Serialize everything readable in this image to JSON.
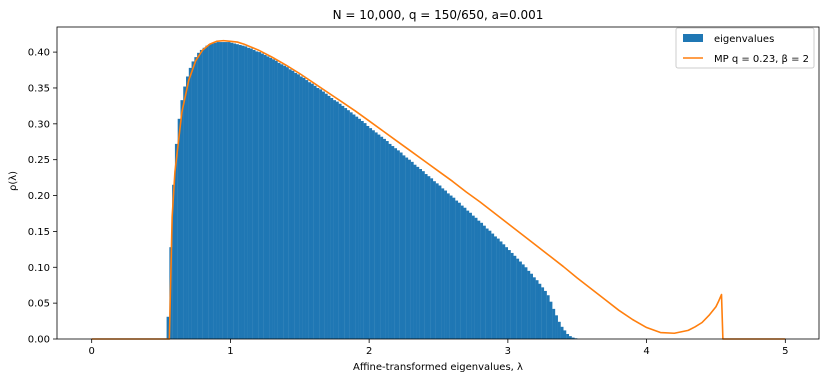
{
  "chart_data": {
    "type": "bar",
    "title": "N = 10,000, q = 150/650, a=0.001",
    "xlabel": "Affine-transformed eigenvalues, λ",
    "ylabel": "ρ(λ)",
    "xlim": [
      -0.25,
      5.25
    ],
    "ylim": [
      0,
      0.435
    ],
    "xticks": [
      0,
      1,
      2,
      3,
      4,
      5
    ],
    "xtick_labels": [
      "0",
      "1",
      "2",
      "3",
      "4",
      "5"
    ],
    "yticks": [
      0.0,
      0.05,
      0.1,
      0.15,
      0.2,
      0.25,
      0.3,
      0.35,
      0.4
    ],
    "ytick_labels": [
      "0.00",
      "0.05",
      "0.10",
      "0.15",
      "0.20",
      "0.25",
      "0.30",
      "0.35",
      "0.40"
    ],
    "legend_position": "top-right",
    "colors": {
      "histogram": "#1f77b4",
      "curve": "#ff7f0e"
    },
    "histogram": {
      "name": "eigenvalues",
      "bin_width": 0.02,
      "bin_edges_start": 0.54,
      "values": [
        0.031,
        0.128,
        0.215,
        0.272,
        0.307,
        0.333,
        0.352,
        0.366,
        0.378,
        0.387,
        0.393,
        0.399,
        0.403,
        0.406,
        0.409,
        0.411,
        0.412,
        0.413,
        0.414,
        0.414,
        0.414,
        0.414,
        0.414,
        0.413,
        0.412,
        0.411,
        0.41,
        0.409,
        0.408,
        0.406,
        0.405,
        0.403,
        0.401,
        0.4,
        0.398,
        0.396,
        0.394,
        0.392,
        0.39,
        0.388,
        0.385,
        0.383,
        0.381,
        0.379,
        0.376,
        0.374,
        0.371,
        0.369,
        0.366,
        0.364,
        0.361,
        0.358,
        0.356,
        0.353,
        0.35,
        0.348,
        0.345,
        0.342,
        0.339,
        0.336,
        0.333,
        0.331,
        0.328,
        0.325,
        0.322,
        0.319,
        0.316,
        0.313,
        0.31,
        0.307,
        0.304,
        0.301,
        0.297,
        0.294,
        0.291,
        0.288,
        0.285,
        0.282,
        0.279,
        0.276,
        0.272,
        0.269,
        0.266,
        0.263,
        0.26,
        0.256,
        0.253,
        0.25,
        0.247,
        0.243,
        0.24,
        0.237,
        0.234,
        0.23,
        0.227,
        0.224,
        0.22,
        0.217,
        0.214,
        0.21,
        0.207,
        0.203,
        0.2,
        0.197,
        0.193,
        0.19,
        0.186,
        0.183,
        0.179,
        0.176,
        0.172,
        0.169,
        0.165,
        0.162,
        0.158,
        0.154,
        0.151,
        0.147,
        0.143,
        0.14,
        0.136,
        0.132,
        0.128,
        0.124,
        0.12,
        0.116,
        0.112,
        0.108,
        0.104,
        0.1,
        0.095,
        0.091,
        0.086,
        0.082,
        0.077,
        0.072,
        0.067,
        0.061,
        0.052,
        0.042,
        0.033,
        0.024,
        0.017,
        0.012,
        0.007,
        0.004,
        0.002,
        0.001
      ]
    },
    "series": [
      {
        "name": "MP q = 0.23, β = 2",
        "q": 0.23,
        "beta": 2,
        "x": [
          0.0,
          0.56,
          0.58,
          0.6,
          0.65,
          0.7,
          0.75,
          0.8,
          0.85,
          0.9,
          0.95,
          1.0,
          1.05,
          1.1,
          1.15,
          1.2,
          1.3,
          1.4,
          1.5,
          1.6,
          1.7,
          1.8,
          1.9,
          2.0,
          2.1,
          2.2,
          2.3,
          2.4,
          2.5,
          2.6,
          2.7,
          2.8,
          2.9,
          3.0,
          3.1,
          3.2,
          3.3,
          3.4,
          3.5,
          3.6,
          3.7,
          3.8,
          3.9,
          4.0,
          4.1,
          4.2,
          4.3,
          4.35,
          4.4,
          4.45,
          4.5,
          4.52,
          4.54,
          4.55,
          5.0
        ],
        "y": [
          0.0,
          0.0,
          0.17,
          0.233,
          0.316,
          0.361,
          0.388,
          0.403,
          0.411,
          0.415,
          0.416,
          0.415,
          0.414,
          0.411,
          0.407,
          0.403,
          0.393,
          0.382,
          0.37,
          0.357,
          0.344,
          0.331,
          0.318,
          0.304,
          0.29,
          0.276,
          0.262,
          0.248,
          0.234,
          0.22,
          0.205,
          0.191,
          0.176,
          0.161,
          0.146,
          0.131,
          0.116,
          0.101,
          0.085,
          0.07,
          0.055,
          0.04,
          0.027,
          0.016,
          0.009,
          0.008,
          0.012,
          0.017,
          0.023,
          0.033,
          0.045,
          0.053,
          0.062,
          0.0,
          0.0
        ]
      }
    ]
  }
}
